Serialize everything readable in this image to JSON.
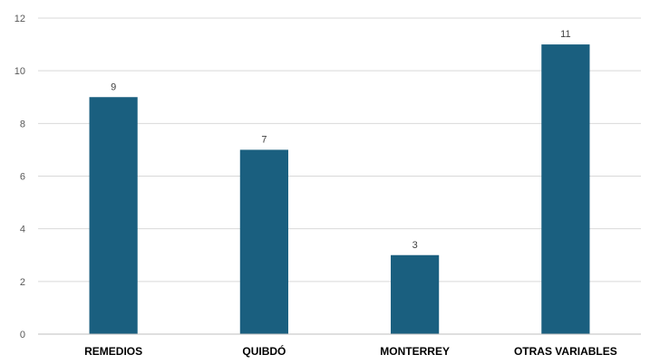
{
  "chart_data": {
    "type": "bar",
    "categories": [
      "REMEDIOS",
      "QUIBDÓ",
      "MONTERREY",
      "OTRAS VARIABLES"
    ],
    "values": [
      9,
      7,
      3,
      11
    ],
    "ylim": [
      0,
      12
    ],
    "yticks": [
      0,
      2,
      4,
      6,
      8,
      10,
      12
    ],
    "grid": true,
    "bar_color": "#1a5f7f",
    "data_labels": true
  }
}
